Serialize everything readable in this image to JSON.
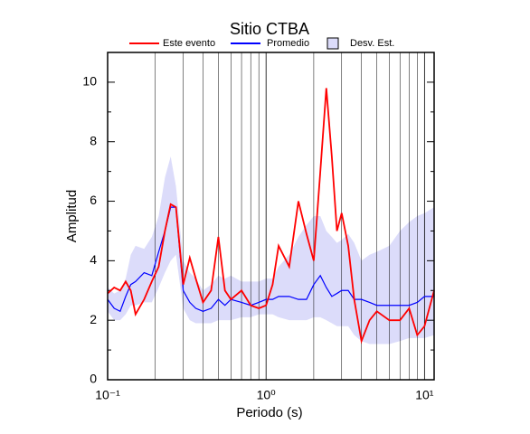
{
  "chart_data": {
    "type": "line",
    "title": "Sitio CTBA",
    "xlabel": "Periodo (s)",
    "ylabel": "Amplitud",
    "xscale": "log",
    "xlim": [
      0.1,
      11.5
    ],
    "ylim": [
      0,
      11
    ],
    "xticks": [
      {
        "value": 0.1,
        "label": "10⁻¹"
      },
      {
        "value": 1,
        "label": "10⁰"
      },
      {
        "value": 10,
        "label": "10¹"
      }
    ],
    "xminorticks": [
      0.2,
      0.3,
      0.4,
      0.5,
      0.6,
      0.7,
      0.8,
      0.9,
      2,
      3,
      4,
      5,
      6,
      7,
      8,
      9
    ],
    "yticks": [
      0,
      2,
      4,
      6,
      8,
      10
    ],
    "yminorticks": [
      1,
      3,
      5,
      7,
      9
    ],
    "grid": true,
    "x": [
      0.1,
      0.11,
      0.12,
      0.13,
      0.14,
      0.15,
      0.17,
      0.19,
      0.21,
      0.23,
      0.25,
      0.27,
      0.3,
      0.33,
      0.36,
      0.4,
      0.45,
      0.5,
      0.55,
      0.6,
      0.7,
      0.8,
      0.9,
      1.0,
      1.1,
      1.2,
      1.4,
      1.6,
      1.8,
      2.0,
      2.2,
      2.4,
      2.6,
      2.8,
      3.0,
      3.3,
      3.6,
      4.0,
      4.5,
      5,
      6,
      7,
      8,
      9,
      10,
      11.5
    ],
    "band": {
      "name": "Desv. Est.",
      "color": "#dcdcfa",
      "upper": [
        3.1,
        2.9,
        3.0,
        3.4,
        4.2,
        4.5,
        4.4,
        4.8,
        5.5,
        6.8,
        7.5,
        6.5,
        4.0,
        3.6,
        3.4,
        3.0,
        3.2,
        3.5,
        3.4,
        3.5,
        3.3,
        3.3,
        3.3,
        3.4,
        3.4,
        3.8,
        4.2,
        4.8,
        5.2,
        5.5,
        5.5,
        5.0,
        4.8,
        4.6,
        4.7,
        4.9,
        4.6,
        4.0,
        4.2,
        4.3,
        4.5,
        5.0,
        5.3,
        5.5,
        5.6,
        5.8
      ],
      "lower": [
        2.3,
        2.0,
        2.0,
        2.2,
        2.5,
        2.5,
        2.6,
        2.6,
        3.1,
        3.6,
        4.0,
        4.2,
        2.4,
        2.0,
        1.9,
        1.9,
        1.9,
        2.0,
        2.0,
        2.0,
        2.1,
        2.1,
        2.2,
        2.2,
        2.2,
        2.1,
        2.0,
        2.0,
        2.0,
        2.1,
        2.1,
        2.0,
        1.9,
        1.8,
        1.8,
        1.8,
        1.5,
        1.3,
        1.2,
        1.2,
        1.2,
        1.3,
        1.4,
        1.4,
        1.4,
        1.5
      ]
    },
    "series": [
      {
        "name": "Este evento",
        "color": "#ff0000",
        "values": [
          2.9,
          3.1,
          3.0,
          3.3,
          3.0,
          2.2,
          2.7,
          3.3,
          3.8,
          5.0,
          5.9,
          5.8,
          3.2,
          4.1,
          3.4,
          2.6,
          3.0,
          4.8,
          3.0,
          2.7,
          3.0,
          2.5,
          2.4,
          2.5,
          3.2,
          4.5,
          3.8,
          6.0,
          4.9,
          4.0,
          7.0,
          9.8,
          7.5,
          5.0,
          5.6,
          4.5,
          2.7,
          1.3,
          2.0,
          2.3,
          2.0,
          2.0,
          2.4,
          1.5,
          1.8,
          3.0
        ]
      },
      {
        "name": "Promedio",
        "color": "#0000ff",
        "values": [
          2.7,
          2.4,
          2.3,
          2.8,
          3.2,
          3.3,
          3.6,
          3.5,
          4.3,
          5.0,
          5.8,
          5.8,
          3.0,
          2.6,
          2.4,
          2.3,
          2.4,
          2.7,
          2.5,
          2.7,
          2.6,
          2.5,
          2.6,
          2.7,
          2.7,
          2.8,
          2.8,
          2.7,
          2.7,
          3.2,
          3.5,
          3.1,
          2.8,
          2.9,
          3.0,
          3.0,
          2.7,
          2.7,
          2.6,
          2.5,
          2.5,
          2.5,
          2.5,
          2.6,
          2.8,
          2.8
        ]
      }
    ]
  }
}
